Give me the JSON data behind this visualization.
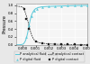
{
  "title": "",
  "xlabel": "t (ms)",
  "ylabel": "Pressure",
  "xlim": [
    -0.0005,
    0.005
  ],
  "ylim": [
    0,
    1.05
  ],
  "xticks": [
    0.0,
    0.001,
    0.002,
    0.003,
    0.004,
    0.005
  ],
  "xtick_labels": [
    "-0.000",
    "0.001",
    "0.002",
    "0.003",
    "0.004",
    "0.005"
  ],
  "yticks": [
    0.0,
    0.2,
    0.4,
    0.6,
    0.8,
    1.0
  ],
  "analytical_fluid_x": [
    -0.0005,
    -0.0003,
    -0.0001,
    5e-05,
    0.0001,
    0.0002,
    0.0003,
    0.0004,
    0.0005,
    0.0006,
    0.0007,
    0.0008,
    0.0009,
    0.001,
    0.0012,
    0.0015,
    0.002,
    0.0025,
    0.003,
    0.0035,
    0.004,
    0.0045,
    0.005
  ],
  "analytical_fluid_y": [
    0.0,
    0.0,
    0.005,
    0.02,
    0.04,
    0.09,
    0.18,
    0.32,
    0.5,
    0.65,
    0.76,
    0.83,
    0.88,
    0.91,
    0.94,
    0.96,
    0.97,
    0.975,
    0.98,
    0.985,
    0.99,
    0.992,
    0.995
  ],
  "analytical_contact_x": [
    -0.0005,
    -0.0003,
    -0.0001,
    5e-05,
    0.0001,
    0.0002,
    0.0003,
    0.0004,
    0.0005,
    0.0006,
    0.0007,
    0.0008,
    0.0009,
    0.001,
    0.0012,
    0.0015,
    0.002,
    0.0025,
    0.003,
    0.0035,
    0.004,
    0.0045,
    0.005
  ],
  "analytical_contact_y": [
    0.98,
    0.97,
    0.96,
    0.94,
    0.9,
    0.82,
    0.72,
    0.6,
    0.46,
    0.34,
    0.24,
    0.17,
    0.12,
    0.09,
    0.06,
    0.04,
    0.025,
    0.015,
    0.01,
    0.007,
    0.005,
    0.003,
    0.002
  ],
  "digital_fluid_x": [
    0.0003,
    0.0005,
    0.0007,
    0.0009,
    0.0011,
    0.0015,
    0.002,
    0.0025,
    0.003,
    0.0035,
    0.004,
    0.0045,
    0.005
  ],
  "digital_fluid_y": [
    0.2,
    0.5,
    0.72,
    0.85,
    0.91,
    0.95,
    0.97,
    0.975,
    0.98,
    0.985,
    0.99,
    0.992,
    0.995
  ],
  "digital_contact_x": [
    0.0001,
    0.0003,
    0.0005,
    0.001,
    0.0015,
    0.002,
    0.0025,
    0.003,
    0.0035,
    0.004,
    0.0045,
    0.005
  ],
  "digital_contact_y": [
    0.9,
    0.65,
    0.4,
    0.08,
    0.035,
    0.02,
    0.013,
    0.009,
    0.007,
    0.005,
    0.003,
    0.002
  ],
  "color_analytical_fluid": "#5bc8d8",
  "color_analytical_contact": "#404040",
  "color_digital_fluid": "#5bc8d8",
  "color_digital_contact": "#202020",
  "legend_labels": [
    "P analytical fluid",
    "P digital fluid",
    "P analytical contact",
    "P digital contact"
  ],
  "background_color": "#e8e8e8",
  "plot_bg_color": "#f5f5f5",
  "grid_color": "#ffffff",
  "label_fontsize": 3.5,
  "tick_fontsize": 2.8,
  "legend_fontsize": 2.5
}
